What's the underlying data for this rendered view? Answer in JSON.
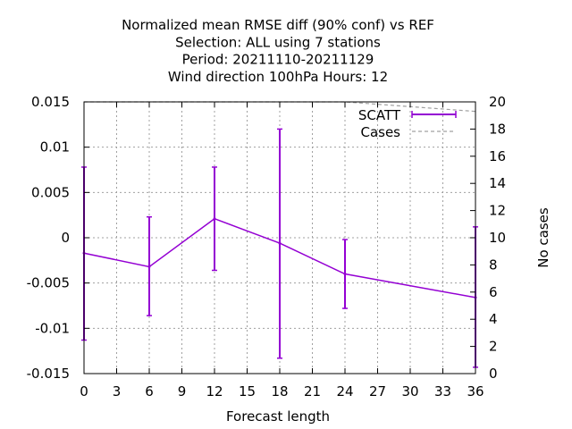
{
  "chart_data": {
    "type": "line",
    "title_lines": [
      "Normalized mean RMSE diff (90% conf) vs REF",
      "Selection: ALL using     7 stations",
      "Period: 20211110-20211129",
      "Wind direction 100hPa   Hours:  12"
    ],
    "xlabel": "Forecast length",
    "ylabel": "",
    "y2label": "No cases",
    "xlim": [
      0,
      36
    ],
    "ylim": [
      -0.015,
      0.015
    ],
    "y2lim": [
      0,
      20
    ],
    "x_ticks": [
      0,
      3,
      6,
      9,
      12,
      15,
      18,
      21,
      24,
      27,
      30,
      33,
      36
    ],
    "y_ticks": [
      -0.015,
      -0.01,
      -0.005,
      0,
      0.005,
      0.01,
      0.015
    ],
    "y_tick_labels": [
      "-0.015",
      "-0.01",
      "-0.005",
      "0",
      "0.005",
      "0.01",
      "0.015"
    ],
    "y2_ticks": [
      0,
      2,
      4,
      6,
      8,
      10,
      12,
      14,
      16,
      18,
      20
    ],
    "grid": true,
    "legend_position": "top-right",
    "series": [
      {
        "name": "SCATT",
        "color": "#9400d3",
        "x": [
          0,
          6,
          12,
          18,
          24,
          36
        ],
        "y": [
          -0.0017,
          -0.0032,
          0.0021,
          -0.0006,
          -0.004,
          -0.0066
        ],
        "err_low": [
          -0.0113,
          -0.0086,
          -0.0036,
          -0.0133,
          -0.0078,
          -0.0143
        ],
        "err_high": [
          0.0078,
          0.0023,
          0.0078,
          0.012,
          -0.0002,
          0.0012
        ]
      },
      {
        "name": "Cases",
        "color": "#a0a0a0",
        "axis": "y2",
        "x": [
          0,
          6,
          12,
          18,
          24,
          36
        ],
        "y": [
          20,
          20,
          20,
          20,
          20,
          19.3
        ]
      }
    ]
  }
}
